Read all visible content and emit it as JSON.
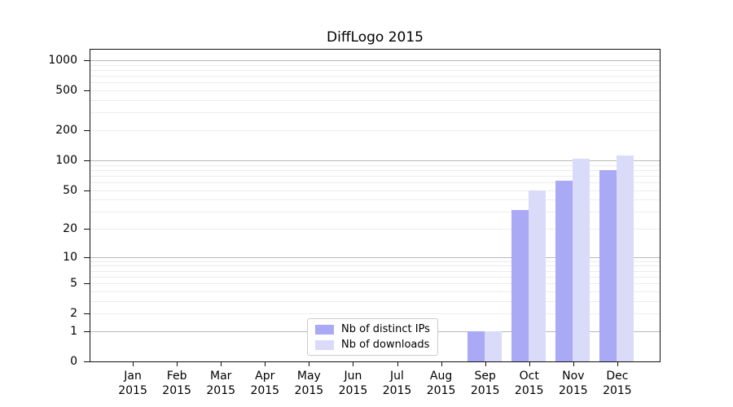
{
  "chart_data": {
    "type": "bar",
    "title": "DiffLogo 2015",
    "categories": [
      {
        "month": "Jan",
        "year": "2015"
      },
      {
        "month": "Feb",
        "year": "2015"
      },
      {
        "month": "Mar",
        "year": "2015"
      },
      {
        "month": "Apr",
        "year": "2015"
      },
      {
        "month": "May",
        "year": "2015"
      },
      {
        "month": "Jun",
        "year": "2015"
      },
      {
        "month": "Jul",
        "year": "2015"
      },
      {
        "month": "Aug",
        "year": "2015"
      },
      {
        "month": "Sep",
        "year": "2015"
      },
      {
        "month": "Oct",
        "year": "2015"
      },
      {
        "month": "Nov",
        "year": "2015"
      },
      {
        "month": "Dec",
        "year": "2015"
      }
    ],
    "series": [
      {
        "name": "Nb of distinct IPs",
        "color": "#a9a9f5",
        "values": [
          0,
          0,
          0,
          0,
          0,
          0,
          0,
          0,
          1,
          31,
          62,
          80
        ]
      },
      {
        "name": "Nb of downloads",
        "color": "#dadaf9",
        "values": [
          0,
          0,
          0,
          0,
          0,
          0,
          0,
          0,
          1,
          50,
          103,
          112
        ]
      }
    ],
    "y_axis": {
      "scale": "log10(value+1)",
      "ticks": [
        0,
        1,
        2,
        5,
        10,
        20,
        50,
        100,
        200,
        500,
        1000
      ],
      "ylim": [
        0,
        1270
      ]
    },
    "grid": {
      "orientation": "horizontal",
      "major_lines": [
        1,
        10,
        100,
        1000
      ],
      "minor_lines": "2-9 per decade"
    },
    "legend_position": "lower center"
  }
}
